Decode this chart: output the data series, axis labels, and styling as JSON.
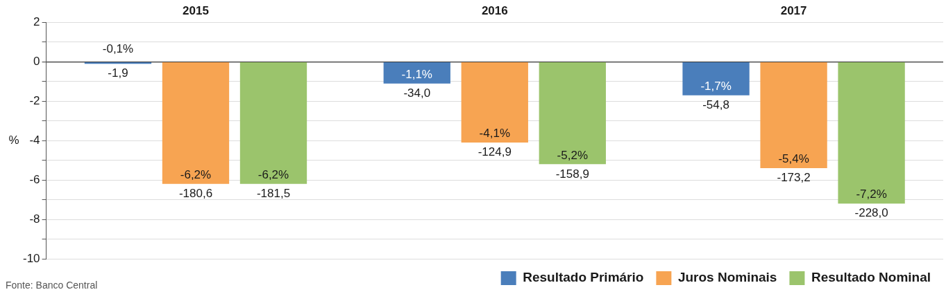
{
  "chart_data": {
    "type": "bar",
    "categories": [
      "2015",
      "2016",
      "2017"
    ],
    "ylabel": "%",
    "ylim": [
      -10,
      2
    ],
    "yticks": [
      -10,
      {
        "value": -9,
        "label": null
      },
      -8,
      {
        "value": -7,
        "label": null
      },
      -6,
      {
        "value": -5,
        "label": null
      },
      -4,
      {
        "value": -3,
        "label": null
      },
      -2,
      {
        "value": -1,
        "label": null
      },
      0,
      {
        "value": 1,
        "label": null
      },
      2
    ],
    "grid": "y",
    "legend": "bottom right",
    "series": [
      {
        "name": "Resultado Primário",
        "color": "#4a7ebb",
        "values": [
          -0.1,
          -1.1,
          -1.7
        ],
        "value_labels": [
          "-0,1%",
          "-1,1%",
          "-1,7%"
        ]
      },
      {
        "name": "Juros Nominais",
        "color": "#f7a452",
        "values": [
          -6.2,
          -4.1,
          -5.4
        ],
        "value_labels": [
          "-6,2%",
          "-4,1%",
          "-5,4%"
        ]
      },
      {
        "name": "Resultado Nominal",
        "color": "#9bc46c",
        "values": [
          -6.2,
          -5.2,
          -7.2
        ],
        "value_labels": [
          "-6,2%",
          "-5,2%",
          "-7,2%"
        ]
      }
    ],
    "annotations": [
      "-1,9",
      "-180,6",
      "-181,5",
      "-34,0",
      "-124,9",
      "-158,9",
      "-54,8",
      "-173,2",
      "-228,0",
      "Fonte: Banco Central"
    ]
  }
}
